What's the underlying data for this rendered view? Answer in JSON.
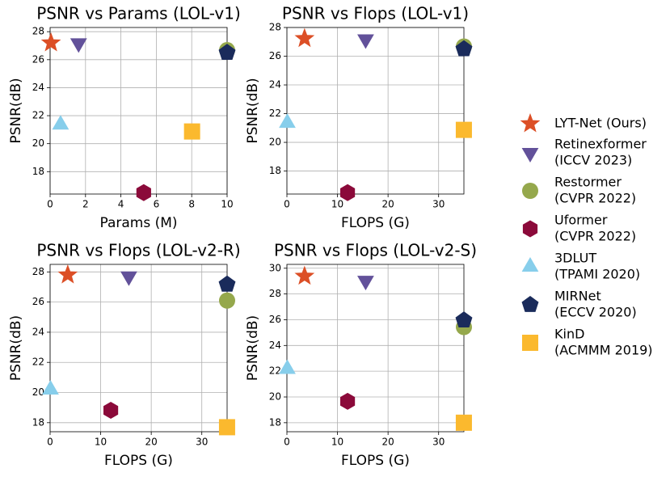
{
  "chart_data": [
    {
      "type": "scatter",
      "title": "PSNR vs Params (LOL-v1)",
      "xlabel": "Params (M)",
      "ylabel": "PSNR(dB)",
      "xlim": [
        0,
        10
      ],
      "ylim": [
        16.4,
        28.3
      ],
      "xticks": [
        0,
        2,
        4,
        6,
        8,
        10
      ],
      "yticks": [
        18,
        20,
        22,
        24,
        26,
        28
      ],
      "grid": true,
      "series": [
        {
          "x": [
            0.05
          ],
          "values": [
            27.2
          ]
        },
        {
          "x": [
            1.61
          ],
          "values": [
            27.18
          ]
        },
        {
          "x": [
            10
          ],
          "values": [
            26.68
          ]
        },
        {
          "x": [
            5.29
          ],
          "values": [
            16.5
          ]
        },
        {
          "x": [
            0.59
          ],
          "values": [
            21.35
          ]
        },
        {
          "x": [
            10
          ],
          "values": [
            26.5
          ]
        },
        {
          "x": [
            8.02
          ],
          "values": [
            20.87
          ]
        }
      ]
    },
    {
      "type": "scatter",
      "title": "PSNR vs Flops (LOL-v1)",
      "xlabel": "FLOPS (G)",
      "ylabel": "PSNR(dB)",
      "xlim": [
        0,
        35
      ],
      "ylim": [
        16.4,
        28.0
      ],
      "xticks": [
        0,
        10,
        20,
        30
      ],
      "yticks": [
        18,
        20,
        22,
        24,
        26,
        28
      ],
      "grid": true,
      "series": [
        {
          "x": [
            3.49
          ],
          "values": [
            27.23
          ]
        },
        {
          "x": [
            15.57
          ],
          "values": [
            27.18
          ]
        },
        {
          "x": [
            35
          ],
          "values": [
            26.68
          ]
        },
        {
          "x": [
            12
          ],
          "values": [
            16.5
          ]
        },
        {
          "x": [
            0.08
          ],
          "values": [
            21.35
          ]
        },
        {
          "x": [
            35
          ],
          "values": [
            26.5
          ]
        },
        {
          "x": [
            34.99
          ],
          "values": [
            20.87
          ]
        }
      ]
    },
    {
      "type": "scatter",
      "title": "PSNR vs Flops (LOL-v2-R)",
      "xlabel": "FLOPS (G)",
      "ylabel": "PSNR(dB)",
      "xlim": [
        0,
        35
      ],
      "ylim": [
        17.4,
        28.5
      ],
      "xticks": [
        0,
        10,
        20,
        30
      ],
      "yticks": [
        18,
        20,
        22,
        24,
        26,
        28
      ],
      "grid": true,
      "series": [
        {
          "x": [
            3.49
          ],
          "values": [
            27.8
          ]
        },
        {
          "x": [
            15.57
          ],
          "values": [
            27.71
          ]
        },
        {
          "x": [
            35
          ],
          "values": [
            26.1
          ]
        },
        {
          "x": [
            12
          ],
          "values": [
            18.82
          ]
        },
        {
          "x": [
            0.08
          ],
          "values": [
            20.19
          ]
        },
        {
          "x": [
            35
          ],
          "values": [
            27.17
          ]
        },
        {
          "x": [
            34.99
          ],
          "values": [
            17.7
          ]
        }
      ]
    },
    {
      "type": "scatter",
      "title": "PSNR vs Flops (LOL-v2-S)",
      "xlabel": "FLOPS (G)",
      "ylabel": "PSNR(dB)",
      "xlim": [
        0,
        35
      ],
      "ylim": [
        17.3,
        30.3
      ],
      "xticks": [
        0,
        10,
        20,
        30
      ],
      "yticks": [
        18,
        20,
        22,
        24,
        26,
        28,
        30
      ],
      "grid": true,
      "series": [
        {
          "x": [
            3.49
          ],
          "values": [
            29.38
          ]
        },
        {
          "x": [
            15.57
          ],
          "values": [
            29.04
          ]
        },
        {
          "x": [
            35
          ],
          "values": [
            25.43
          ]
        },
        {
          "x": [
            12
          ],
          "values": [
            19.66
          ]
        },
        {
          "x": [
            0.08
          ],
          "values": [
            22.17
          ]
        },
        {
          "x": [
            35
          ],
          "values": [
            25.96
          ]
        },
        {
          "x": [
            34.99
          ],
          "values": [
            18.0
          ]
        }
      ]
    }
  ],
  "legend": {
    "position": "right",
    "entries": [
      {
        "name": [
          "LYT-Net (Ours)"
        ],
        "color": "#dc4f26",
        "marker": "star"
      },
      {
        "name": [
          "Retinexformer",
          "(ICCV 2023)"
        ],
        "color": "#62519a",
        "marker": "triangle-down"
      },
      {
        "name": [
          "Restormer",
          "(CVPR 2022)"
        ],
        "color": "#95a84c",
        "marker": "circle"
      },
      {
        "name": [
          "Uformer",
          "(CVPR 2022)"
        ],
        "color": "#8b0a3a",
        "marker": "hexagon"
      },
      {
        "name": [
          "3DLUT",
          "(TPAMI 2020)"
        ],
        "color": "#87ceeb",
        "marker": "triangle-up"
      },
      {
        "name": [
          "MIRNet",
          "(ECCV 2020)"
        ],
        "color": "#1a2b5b",
        "marker": "pentagon"
      },
      {
        "name": [
          "KinD",
          "(ACMMM 2019)"
        ],
        "color": "#fbb92e",
        "marker": "square"
      }
    ]
  }
}
